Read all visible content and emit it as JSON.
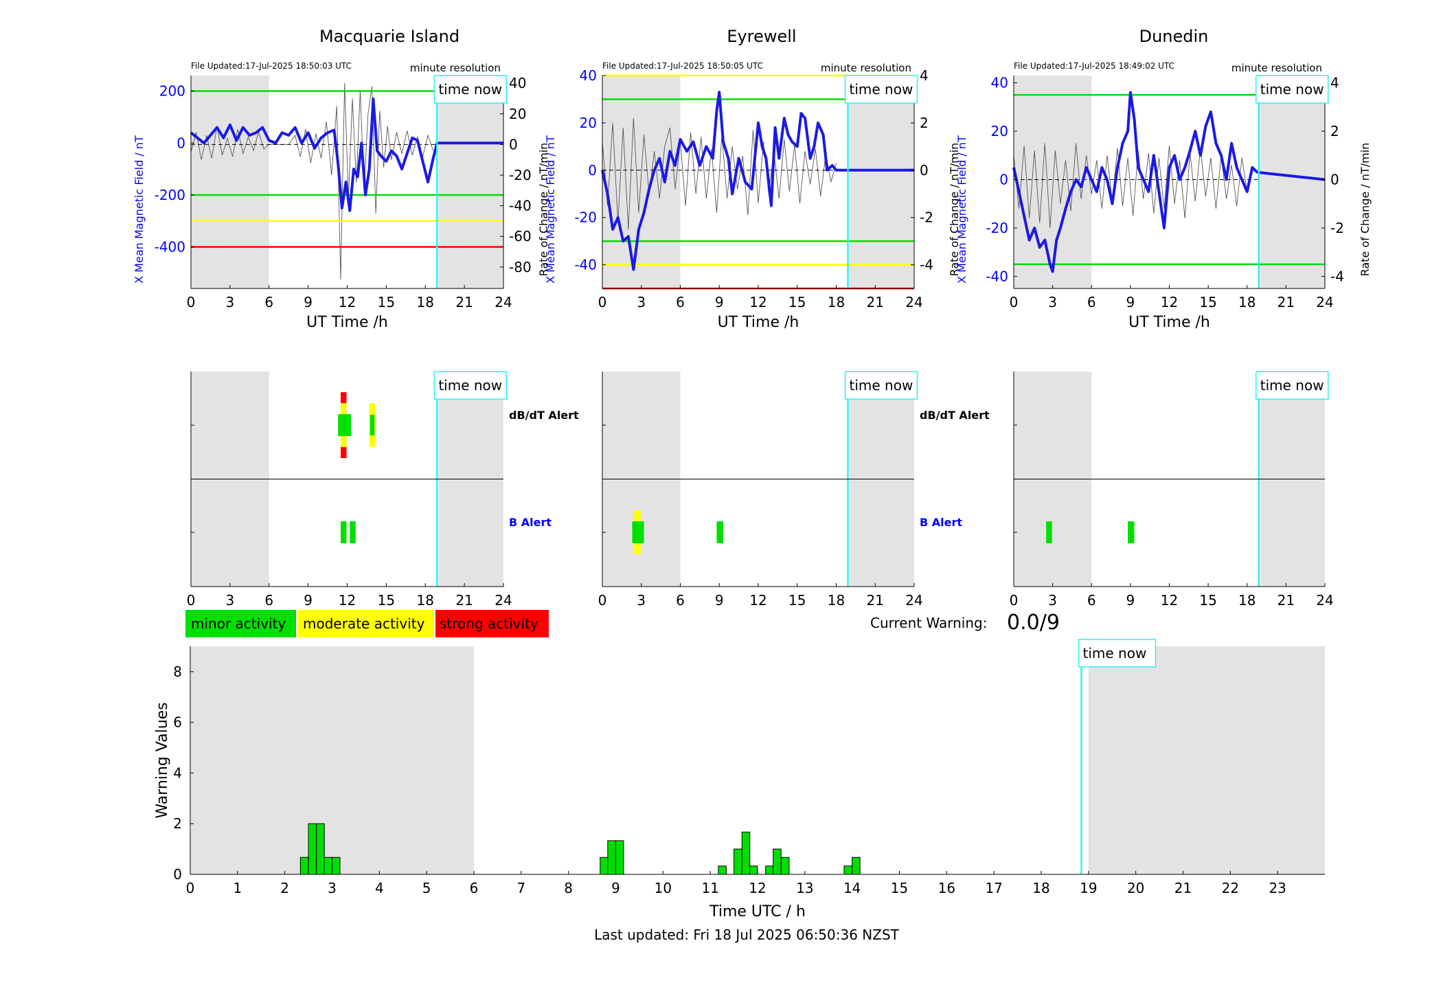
{
  "colors": {
    "field_line": "#1a1ae6",
    "rate_line": "#555555",
    "green": "#00e000",
    "yellow": "#ffff00",
    "red": "#ff0000",
    "cyan": "#30f0f0",
    "night": "#e3e3e3",
    "left_axis": "#0000ff"
  },
  "labels": {
    "time_now": "time now",
    "minute_resolution": "minute resolution",
    "ut_time": "UT Time /h",
    "ylabel_left": "X Mean Magnetic Field / nT",
    "ylabel_right": "Rate of Change / nT/min",
    "dbdt_alert": "dB/dT Alert",
    "b_alert": "B Alert",
    "legend_minor": "minor activity",
    "legend_moderate": "moderate activity",
    "legend_strong": "strong activity",
    "current_warning_label": "Current Warning:",
    "current_warning_value": "0.0/9",
    "bottom_xlabel": "Time UTC / h",
    "bottom_ylabel": "Warning Values",
    "last_updated": "Last updated: Fri 18 Jul 2025 06:50:36 NZST"
  },
  "chart_data": [
    {
      "type": "line",
      "title": "Macquarie Island",
      "file_updated": "File Updated:17-Jul-2025 18:50:03 UTC",
      "xlim": [
        0,
        24
      ],
      "xticks": [
        0,
        3,
        6,
        9,
        12,
        15,
        18,
        21,
        24
      ],
      "ylim": [
        -560,
        260
      ],
      "yticks": [
        -400,
        -200,
        0,
        200
      ],
      "ylim_right": [
        -94,
        45
      ],
      "yticks_right": [
        -80,
        -60,
        -40,
        -20,
        0,
        20,
        40
      ],
      "night_spans": [
        [
          0,
          6
        ],
        [
          19,
          24
        ]
      ],
      "time_now": 18.9,
      "thresholds": [
        {
          "value": 200,
          "color": "green"
        },
        {
          "value": -200,
          "color": "green"
        },
        {
          "value": -300,
          "color": "yellow"
        },
        {
          "value": -400,
          "color": "red"
        }
      ],
      "field_series": {
        "x": [
          0,
          0.5,
          1,
          1.5,
          2,
          2.5,
          3,
          3.5,
          4,
          4.5,
          5,
          5.5,
          6,
          6.5,
          7,
          7.5,
          8,
          8.5,
          9,
          9.5,
          10,
          10.5,
          11,
          11.3,
          11.6,
          11.9,
          12.2,
          12.5,
          12.8,
          13.1,
          13.4,
          13.7,
          14,
          14.3,
          14.6,
          15,
          15.4,
          15.8,
          16.2,
          16.6,
          17,
          17.4,
          17.8,
          18.2,
          18.6,
          18.9,
          24
        ],
        "y": [
          40,
          20,
          0,
          30,
          60,
          20,
          70,
          10,
          60,
          30,
          40,
          60,
          10,
          0,
          40,
          30,
          60,
          0,
          40,
          -20,
          20,
          40,
          50,
          -80,
          -250,
          -150,
          -260,
          -100,
          -130,
          0,
          -200,
          -100,
          170,
          -30,
          -50,
          -70,
          -30,
          -50,
          -100,
          -40,
          20,
          10,
          -70,
          -150,
          -60,
          0,
          0
        ]
      },
      "rate_series": {
        "x": [
          0,
          0.4,
          0.8,
          1.2,
          1.6,
          2,
          2.4,
          2.8,
          3.2,
          3.6,
          4,
          4.4,
          4.8,
          5.2,
          5.6,
          6,
          7.5,
          8,
          8.4,
          8.8,
          9.2,
          9.6,
          10,
          10.4,
          10.8,
          11.2,
          11.5,
          11.8,
          12.1,
          12.4,
          12.7,
          13,
          13.3,
          13.6,
          13.9,
          14.2,
          14.5,
          14.8,
          15.1,
          15.4,
          15.8,
          16.2,
          16.6,
          17,
          17.4,
          17.8,
          18.2,
          18.6
        ],
        "y": [
          -5,
          8,
          -10,
          6,
          -9,
          12,
          -7,
          4,
          -8,
          10,
          -6,
          5,
          -4,
          8,
          -3,
          0,
          0,
          6,
          -8,
          10,
          -12,
          7,
          -9,
          15,
          -20,
          25,
          -88,
          40,
          -35,
          30,
          -25,
          35,
          -30,
          20,
          38,
          -45,
          22,
          -15,
          12,
          -10,
          8,
          -6,
          9,
          -7,
          5,
          -8,
          6,
          -4
        ]
      }
    },
    {
      "type": "line",
      "title": "Eyrewell",
      "file_updated": "File Updated:17-Jul-2025 18:50:05 UTC",
      "xlim": [
        0,
        24
      ],
      "xticks": [
        0,
        3,
        6,
        9,
        12,
        15,
        18,
        21,
        24
      ],
      "ylim": [
        -50,
        40
      ],
      "yticks": [
        -40,
        -20,
        0,
        20,
        40
      ],
      "ylim_right": [
        -5,
        4
      ],
      "yticks_right": [
        -4,
        -2,
        0,
        2,
        4
      ],
      "night_spans": [
        [
          0,
          6
        ],
        [
          19,
          24
        ]
      ],
      "time_now": 18.9,
      "thresholds": [
        {
          "value": 40,
          "color": "yellow"
        },
        {
          "value": 30,
          "color": "green"
        },
        {
          "value": -30,
          "color": "green"
        },
        {
          "value": -40,
          "color": "yellow"
        },
        {
          "value": -50,
          "color": "red"
        }
      ],
      "field_series": {
        "x": [
          0,
          0.4,
          0.8,
          1.2,
          1.6,
          2,
          2.4,
          2.8,
          3.2,
          3.6,
          4,
          4.4,
          4.8,
          5.2,
          5.6,
          6,
          6.5,
          7,
          7.5,
          8,
          8.5,
          8.8,
          9,
          9.3,
          9.7,
          10,
          10.5,
          11,
          11.5,
          12,
          12.3,
          12.6,
          13,
          13.3,
          13.6,
          14,
          14.3,
          14.6,
          15,
          15.3,
          15.6,
          16,
          16.3,
          16.6,
          17,
          17.3,
          17.7,
          18,
          24
        ],
        "y": [
          0,
          -10,
          -25,
          -20,
          -30,
          -28,
          -42,
          -25,
          -18,
          -8,
          0,
          5,
          -5,
          8,
          2,
          13,
          8,
          12,
          2,
          10,
          5,
          25,
          33,
          12,
          5,
          -10,
          5,
          -5,
          -8,
          20,
          10,
          5,
          -15,
          18,
          5,
          22,
          15,
          12,
          10,
          24,
          22,
          5,
          10,
          20,
          15,
          0,
          2,
          0,
          0
        ]
      },
      "rate_series": {
        "x": [
          0,
          0.4,
          0.8,
          1.2,
          1.6,
          2,
          2.4,
          2.8,
          3.2,
          3.6,
          4,
          4.4,
          4.8,
          5.2,
          5.6,
          6,
          6.4,
          6.8,
          7.2,
          7.6,
          8,
          8.4,
          8.8,
          9.2,
          9.6,
          10,
          10.4,
          10.8,
          11.2,
          11.6,
          12,
          12.4,
          12.8,
          13.2,
          13.6,
          14,
          14.4,
          14.8,
          15.2,
          15.6,
          16,
          16.4,
          16.8,
          17.2,
          17.6,
          18
        ],
        "y": [
          1.2,
          -1.5,
          2,
          -2.2,
          1.8,
          -2.5,
          2.2,
          -1.8,
          1.5,
          -1,
          0.8,
          -1.2,
          1,
          1.8,
          -0.8,
          1.2,
          -1.5,
          1.6,
          -1,
          1.4,
          -1.2,
          0.9,
          -1.8,
          1.5,
          -1.2,
          1,
          -0.8,
          0.6,
          -1.9,
          1.7,
          -1.4,
          1.2,
          -1,
          0.8,
          -1.2,
          1.3,
          -0.9,
          1.1,
          -1.4,
          0.8,
          -0.6,
          0.9,
          -1.1,
          0.7,
          -0.5,
          0.3
        ]
      }
    },
    {
      "type": "line",
      "title": "Dunedin",
      "file_updated": "File Updated:17-Jul-2025 18:49:02 UTC",
      "xlim": [
        0,
        24
      ],
      "xticks": [
        0,
        3,
        6,
        9,
        12,
        15,
        18,
        21,
        24
      ],
      "ylim": [
        -45,
        43
      ],
      "yticks": [
        -40,
        -20,
        0,
        20,
        40
      ],
      "ylim_right": [
        -4.5,
        4.3
      ],
      "yticks_right": [
        -4,
        -2,
        0,
        2,
        4
      ],
      "night_spans": [
        [
          0,
          6
        ],
        [
          19,
          24
        ]
      ],
      "time_now": 18.9,
      "thresholds": [
        {
          "value": 35,
          "color": "green"
        },
        {
          "value": -35,
          "color": "green"
        }
      ],
      "field_series": {
        "x": [
          0,
          0.4,
          0.8,
          1.2,
          1.6,
          2,
          2.4,
          2.8,
          3,
          3.3,
          3.6,
          4,
          4.4,
          4.8,
          5.2,
          5.6,
          6,
          6.4,
          6.8,
          7.2,
          7.6,
          8,
          8.4,
          8.8,
          9,
          9.3,
          9.6,
          10,
          10.4,
          10.8,
          11.2,
          11.6,
          12,
          12.4,
          12.8,
          13.2,
          13.6,
          14,
          14.4,
          14.8,
          15.2,
          15.6,
          16,
          16.4,
          16.8,
          17.2,
          17.6,
          18,
          18.4,
          18.8,
          24
        ],
        "y": [
          5,
          -5,
          -15,
          -25,
          -20,
          -28,
          -25,
          -35,
          -38,
          -25,
          -20,
          -12,
          -5,
          0,
          -3,
          5,
          0,
          -5,
          5,
          0,
          -10,
          5,
          15,
          20,
          36,
          25,
          5,
          0,
          -5,
          10,
          -5,
          -20,
          5,
          10,
          0,
          5,
          12,
          20,
          10,
          22,
          28,
          15,
          10,
          0,
          15,
          5,
          0,
          -5,
          5,
          3,
          0
        ]
      },
      "rate_series": {
        "x": [
          0,
          0.4,
          0.8,
          1.2,
          1.6,
          2,
          2.4,
          2.8,
          3.2,
          3.6,
          4,
          4.4,
          4.8,
          5.2,
          5.6,
          6,
          6.4,
          6.8,
          7.2,
          7.6,
          8,
          8.4,
          8.8,
          9.2,
          9.6,
          10,
          10.4,
          10.8,
          11.2,
          11.6,
          12,
          12.4,
          12.8,
          13.2,
          13.6,
          14,
          14.4,
          14.8,
          15.2,
          15.6,
          16,
          16.4,
          16.8,
          17.2,
          17.6,
          18,
          18.4
        ],
        "y": [
          1,
          -1.2,
          1.4,
          -1.6,
          1.2,
          -1.8,
          1.5,
          -2,
          1.2,
          -1,
          0.8,
          -1.3,
          1.5,
          -0.8,
          1,
          -0.6,
          0.8,
          -1.2,
          1,
          -0.9,
          1.3,
          -1.1,
          0.9,
          -1.5,
          1.2,
          -0.8,
          1.1,
          -1.4,
          0.9,
          -1.2,
          1.4,
          -1,
          0.8,
          -1.6,
          1.1,
          -0.9,
          1.3,
          -0.7,
          0.9,
          -1.2,
          1,
          -0.8,
          0.6,
          -1.1,
          0.9,
          -0.5,
          0.4
        ]
      }
    },
    {
      "type": "bar",
      "title": "",
      "xlabel": "Time UTC / h",
      "ylabel": "Warning Values",
      "xlim": [
        0,
        24
      ],
      "xticks": [
        0,
        1,
        2,
        3,
        4,
        5,
        6,
        7,
        8,
        9,
        10,
        11,
        12,
        13,
        14,
        15,
        16,
        17,
        18,
        19,
        20,
        21,
        22,
        23
      ],
      "ylim": [
        0,
        9
      ],
      "yticks": [
        0,
        2,
        4,
        6,
        8
      ],
      "night_spans": [
        [
          0,
          6
        ],
        [
          19,
          24
        ]
      ],
      "time_now": 18.85,
      "bar_width": 0.1667,
      "x": [
        2.33,
        2.5,
        2.67,
        2.83,
        3.0,
        8.67,
        8.83,
        9.0,
        11.17,
        11.5,
        11.67,
        11.83,
        12.17,
        12.33,
        12.5,
        13.83,
        14.0
      ],
      "values": [
        0.67,
        2,
        2,
        0.67,
        0.67,
        0.67,
        1.33,
        1.33,
        0.33,
        1,
        1.67,
        0.33,
        0.33,
        1,
        0.67,
        0.33,
        0.67
      ]
    }
  ],
  "alert_panels": [
    {
      "station": "Macquarie Island",
      "dbdt": [
        {
          "x0": 11.5,
          "x1": 11.95,
          "level": "strong"
        },
        {
          "x0": 11.3,
          "x1": 11.5,
          "level": "minor"
        },
        {
          "x0": 11.5,
          "x1": 11.95,
          "level": "moderate_core"
        },
        {
          "x0": 11.95,
          "x1": 12.3,
          "level": "minor"
        },
        {
          "x0": 13.7,
          "x1": 14.15,
          "level": "moderate"
        },
        {
          "x0": 13.75,
          "x1": 14.1,
          "level": "minor_core"
        }
      ],
      "b": [
        {
          "x0": 11.5,
          "x1": 11.95,
          "level": "minor"
        },
        {
          "x0": 12.2,
          "x1": 12.65,
          "level": "minor"
        }
      ]
    },
    {
      "station": "Eyrewell",
      "dbdt": [],
      "b": [
        {
          "x0": 2.45,
          "x1": 2.95,
          "level": "moderate"
        },
        {
          "x0": 2.3,
          "x1": 3.2,
          "level": "minor"
        },
        {
          "x0": 8.8,
          "x1": 9.3,
          "level": "minor"
        }
      ]
    },
    {
      "station": "Dunedin",
      "dbdt": [],
      "b": [
        {
          "x0": 2.5,
          "x1": 2.95,
          "level": "minor"
        },
        {
          "x0": 8.8,
          "x1": 9.3,
          "level": "minor"
        }
      ]
    }
  ]
}
